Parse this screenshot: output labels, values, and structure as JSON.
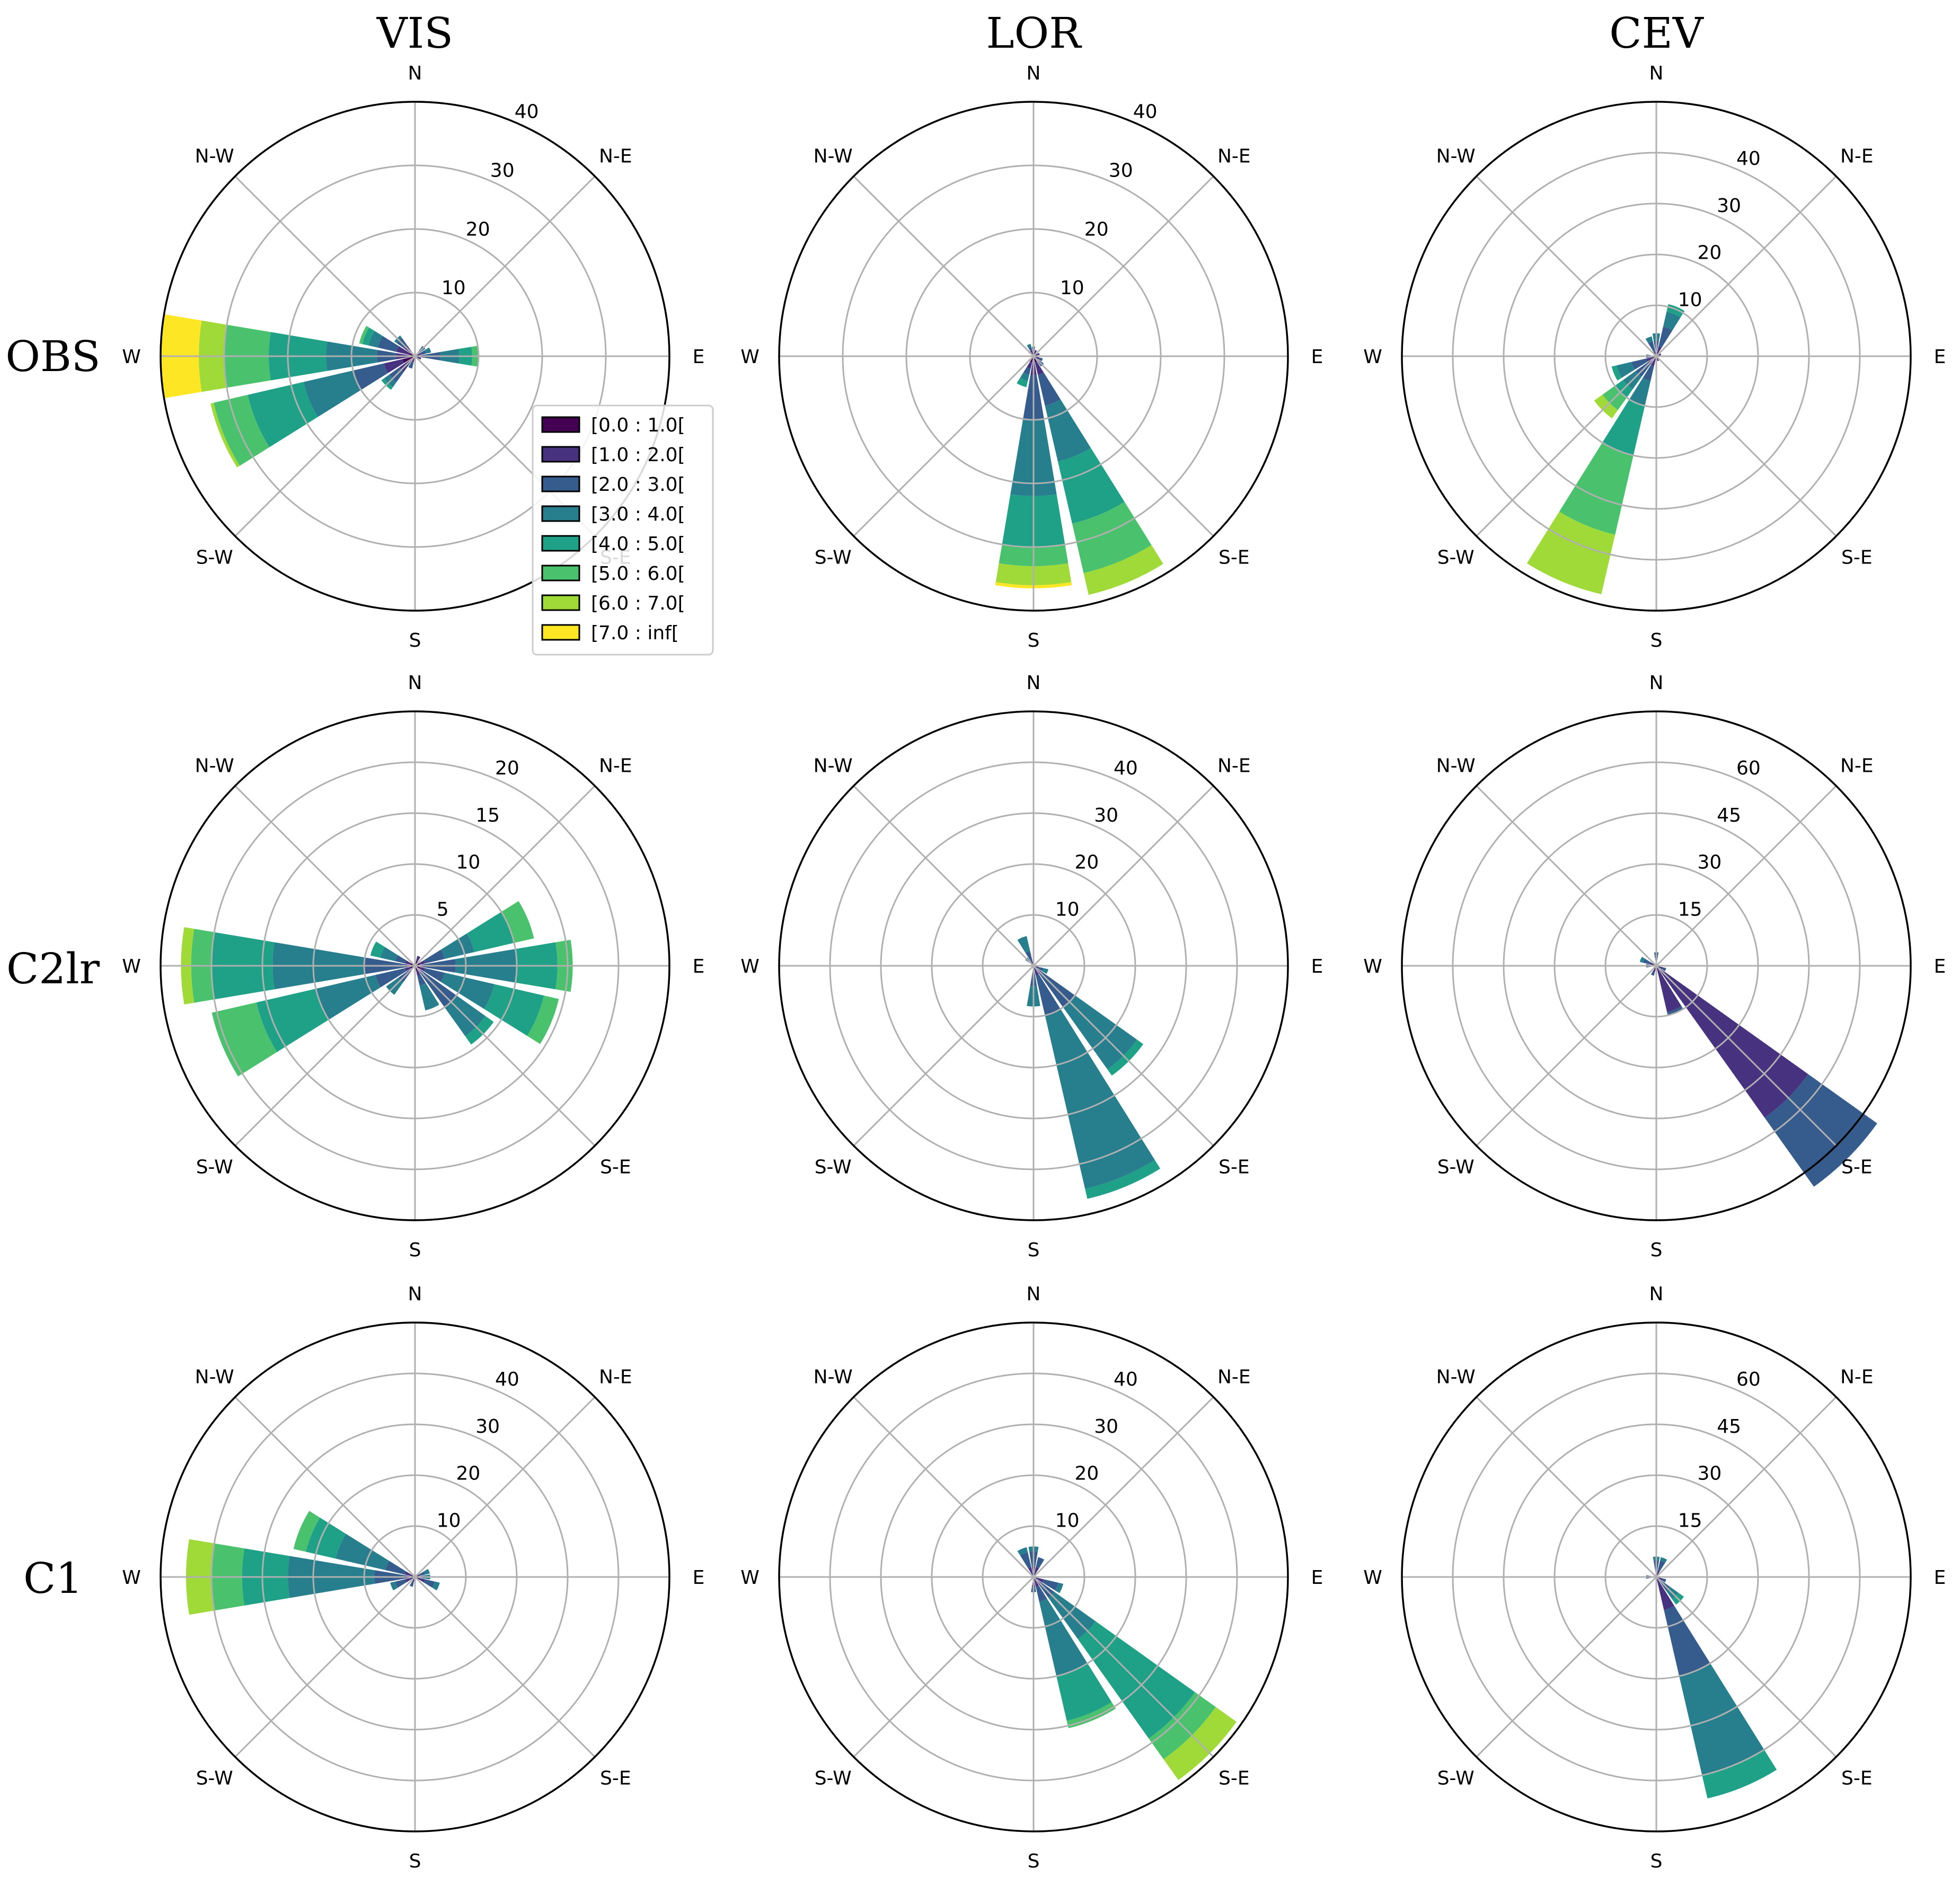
{
  "figure": {
    "columns": [
      "VIS",
      "LOR",
      "CEV"
    ],
    "rows": [
      "OBS",
      "C2lr",
      "C1"
    ],
    "directions": [
      "N",
      "N-E",
      "E",
      "S-E",
      "S",
      "S-W",
      "W",
      "N-W"
    ]
  },
  "chart_data": {
    "type": "windrose",
    "legend": {
      "placement": "between OBS-VIS and OBS-LOR",
      "entries": [
        {
          "label": "[0.0 : 1.0[",
          "color": "#440154"
        },
        {
          "label": "[1.0 : 2.0[",
          "color": "#46327e"
        },
        {
          "label": "[2.0 : 3.0[",
          "color": "#365c8d"
        },
        {
          "label": "[3.0 : 4.0[",
          "color": "#277f8e"
        },
        {
          "label": "[4.0 : 5.0[",
          "color": "#1fa187"
        },
        {
          "label": "[5.0 : 6.0[",
          "color": "#4ac16d"
        },
        {
          "label": "[6.0 : 7.0[",
          "color": "#a0da39"
        },
        {
          "label": "[7.0 : inf[",
          "color": "#fde725"
        }
      ]
    },
    "panels": [
      {
        "row": "OBS",
        "col": "VIS",
        "rmax": 40,
        "ticks": [
          "10",
          "20",
          "30",
          "40"
        ],
        "petals": [
          {
            "dir": 90,
            "stack": [
              0,
              0.5,
              1.5,
              4,
              7,
              9,
              10
            ]
          },
          {
            "dir": 67.5,
            "stack": [
              0,
              0.3,
              1,
              1.8,
              2.6
            ]
          },
          {
            "dir": 45,
            "stack": [
              0,
              0.5,
              1.2,
              2
            ]
          },
          {
            "dir": 112.5,
            "stack": [
              0,
              0.5,
              1
            ]
          },
          {
            "dir": 135,
            "stack": [
              0,
              0.3,
              0.7
            ]
          },
          {
            "dir": 202.5,
            "stack": [
              0,
              0.3,
              1,
              2
            ]
          },
          {
            "dir": 225,
            "stack": [
              0,
              1,
              3,
              5,
              6,
              6.5
            ]
          },
          {
            "dir": 247.5,
            "stack": [
              0,
              2,
              5,
              10,
              18,
              27,
              32.5,
              33
            ]
          },
          {
            "dir": 270,
            "stack": [
              0,
              1,
              3,
              6,
              14,
              23,
              30,
              34,
              40
            ]
          },
          {
            "dir": 292.5,
            "stack": [
              0,
              1,
              3,
              6,
              7.5,
              8.5,
              9
            ]
          },
          {
            "dir": 315,
            "stack": [
              0,
              1,
              2,
              3.5,
              4
            ]
          }
        ]
      },
      {
        "row": "OBS",
        "col": "LOR",
        "rmax": 40,
        "ticks": [
          "10",
          "20",
          "30",
          "40"
        ],
        "petals": [
          {
            "dir": 0,
            "stack": [
              0,
              0.5,
              1,
              1.5
            ]
          },
          {
            "dir": 22.5,
            "stack": [
              0,
              0.5,
              1
            ]
          },
          {
            "dir": 67.5,
            "stack": [
              0,
              0.5,
              1
            ]
          },
          {
            "dir": 112.5,
            "stack": [
              0,
              0.5,
              1,
              1.5
            ]
          },
          {
            "dir": 135,
            "stack": [
              0,
              0.5,
              1,
              2
            ]
          },
          {
            "dir": 157.5,
            "stack": [
              0,
              1,
              3,
              8,
              17,
              27,
              35,
              38.5
            ]
          },
          {
            "dir": 180,
            "stack": [
              0,
              1,
              3,
              10,
              22,
              30,
              33,
              36,
              36.5
            ]
          },
          {
            "dir": 202.5,
            "stack": [
              0,
              1,
              2,
              3,
              4,
              5
            ]
          },
          {
            "dir": 225,
            "stack": [
              0,
              0.5,
              1
            ]
          },
          {
            "dir": 337.5,
            "stack": [
              0,
              0.5,
              1,
              1.5,
              2
            ]
          },
          {
            "dir": 315,
            "stack": [
              0,
              0.5,
              1
            ]
          }
        ]
      },
      {
        "row": "OBS",
        "col": "CEV",
        "rmax": 50,
        "ticks": [
          "10",
          "20",
          "30",
          "40"
        ],
        "petals": [
          {
            "dir": 22.5,
            "stack": [
              0,
              0.5,
              2,
              6,
              9,
              10.5
            ]
          },
          {
            "dir": 0,
            "stack": [
              0,
              0.5,
              1,
              3,
              4.5
            ]
          },
          {
            "dir": 337.5,
            "stack": [
              0,
              0.5,
              1,
              3,
              4
            ]
          },
          {
            "dir": 202.5,
            "stack": [
              0,
              0.5,
              2,
              5,
              10,
              20,
              36,
              48
            ]
          },
          {
            "dir": 225,
            "stack": [
              0,
              0.5,
              2,
              5,
              8,
              10,
              13,
              15
            ]
          },
          {
            "dir": 247.5,
            "stack": [
              0,
              0.5,
              2,
              5,
              8,
              9
            ]
          },
          {
            "dir": 270,
            "stack": [
              0,
              0.5,
              1,
              2
            ]
          },
          {
            "dir": 157.5,
            "stack": [
              0,
              0.5,
              1
            ]
          },
          {
            "dir": 67.5,
            "stack": [
              0,
              0.5,
              1
            ]
          }
        ]
      },
      {
        "row": "C2lr",
        "col": "VIS",
        "rmax": 25,
        "ticks": [
          "5",
          "10",
          "15",
          "20"
        ],
        "petals": [
          {
            "dir": 270,
            "stack": [
              0,
              0.5,
              1,
              5,
              14,
              20,
              22,
              23
            ]
          },
          {
            "dir": 247.5,
            "stack": [
              0,
              0.5,
              1,
              4,
              10,
              16,
              20.5
            ]
          },
          {
            "dir": 225,
            "stack": [
              0,
              0.5,
              1,
              2,
              3.5
            ]
          },
          {
            "dir": 292.5,
            "stack": [
              0,
              0.5,
              1,
              2,
              3.5,
              4.5
            ]
          },
          {
            "dir": 90,
            "stack": [
              0,
              0.5,
              1,
              4,
              10,
              14,
              15.5
            ]
          },
          {
            "dir": 67.5,
            "stack": [
              0,
              0.5,
              1,
              3,
              6,
              10,
              12
            ]
          },
          {
            "dir": 112.5,
            "stack": [
              0,
              0.5,
              1,
              3,
              8,
              13,
              14.5
            ]
          },
          {
            "dir": 135,
            "stack": [
              0,
              0.5,
              1,
              5,
              8.5,
              9.5
            ]
          },
          {
            "dir": 157.5,
            "stack": [
              0,
              0.5,
              1,
              2,
              4.5
            ]
          },
          {
            "dir": 22.5,
            "stack": [
              0,
              0.5,
              1
            ]
          }
        ]
      },
      {
        "row": "C2lr",
        "col": "LOR",
        "rmax": 50,
        "ticks": [
          "10",
          "20",
          "30",
          "40"
        ],
        "petals": [
          {
            "dir": 157.5,
            "stack": [
              0,
              0.5,
              2,
              10,
              45,
              47
            ]
          },
          {
            "dir": 135,
            "stack": [
              0,
              0.5,
              2,
              10,
              25,
              26.5
            ]
          },
          {
            "dir": 180,
            "stack": [
              0,
              0.5,
              1,
              4,
              8
            ]
          },
          {
            "dir": 112.5,
            "stack": [
              0,
              0.5,
              1,
              2,
              3
            ]
          },
          {
            "dir": 337.5,
            "stack": [
              0,
              0.5,
              1,
              3,
              6
            ]
          },
          {
            "dir": 315,
            "stack": [
              0,
              0.5,
              1,
              2
            ]
          },
          {
            "dir": 225,
            "stack": [
              0,
              0.5,
              1
            ]
          }
        ]
      },
      {
        "row": "C2lr",
        "col": "CEV",
        "rmax": 75,
        "ticks": [
          "15",
          "30",
          "45",
          "60"
        ],
        "petals": [
          {
            "dir": 135,
            "stack": [
              0,
              1,
              55,
              80
            ]
          },
          {
            "dir": 157.5,
            "stack": [
              0,
              1,
              14,
              15
            ]
          },
          {
            "dir": 0,
            "stack": [
              0,
              0.5,
              2,
              4
            ]
          },
          {
            "dir": 292.5,
            "stack": [
              0,
              0.5,
              2,
              4,
              5
            ]
          },
          {
            "dir": 270,
            "stack": [
              0,
              0.5,
              2,
              3
            ]
          },
          {
            "dir": 202.5,
            "stack": [
              0,
              0.5,
              2,
              3
            ]
          },
          {
            "dir": 112.5,
            "stack": [
              0,
              0.5,
              2,
              3
            ]
          }
        ]
      },
      {
        "row": "C1",
        "col": "VIS",
        "rmax": 50,
        "ticks": [
          "10",
          "20",
          "30",
          "40"
        ],
        "petals": [
          {
            "dir": 270,
            "stack": [
              0,
              0.5,
              2,
              8,
              25,
              34,
              40,
              45
            ]
          },
          {
            "dir": 292.5,
            "stack": [
              0,
              0.5,
              2,
              6,
              16,
              22,
              24.5
            ]
          },
          {
            "dir": 247.5,
            "stack": [
              0,
              0.5,
              2,
              4,
              5
            ]
          },
          {
            "dir": 112.5,
            "stack": [
              0,
              0.5,
              2,
              4,
              5
            ]
          },
          {
            "dir": 90,
            "stack": [
              0,
              0.5,
              1,
              2,
              3
            ]
          },
          {
            "dir": 67.5,
            "stack": [
              0,
              0.5,
              1,
              2,
              3
            ]
          },
          {
            "dir": 202.5,
            "stack": [
              0,
              0.5,
              1,
              2
            ]
          }
        ]
      },
      {
        "row": "C1",
        "col": "LOR",
        "rmax": 50,
        "ticks": [
          "10",
          "20",
          "30",
          "40"
        ],
        "petals": [
          {
            "dir": 135,
            "stack": [
              0,
              0.5,
              2,
              5,
              15,
              39,
              44,
              49
            ]
          },
          {
            "dir": 157.5,
            "stack": [
              0,
              0.5,
              2,
              5,
              20,
              29,
              30.5
            ]
          },
          {
            "dir": 112.5,
            "stack": [
              0,
              0.5,
              2,
              5,
              6
            ]
          },
          {
            "dir": 0,
            "stack": [
              0,
              0.5,
              2,
              5,
              6
            ]
          },
          {
            "dir": 337.5,
            "stack": [
              0,
              0.5,
              2,
              5,
              6
            ]
          },
          {
            "dir": 22.5,
            "stack": [
              0,
              0.5,
              2,
              4
            ]
          },
          {
            "dir": 180,
            "stack": [
              0,
              0.5,
              2,
              3
            ]
          }
        ]
      },
      {
        "row": "C1",
        "col": "CEV",
        "rmax": 75,
        "ticks": [
          "15",
          "30",
          "45",
          "60"
        ],
        "petals": [
          {
            "dir": 157.5,
            "stack": [
              0,
              1,
              10,
              30,
              60,
              67
            ]
          },
          {
            "dir": 135,
            "stack": [
              0,
              0.5,
              2,
              5,
              8,
              10
            ]
          },
          {
            "dir": 22.5,
            "stack": [
              0,
              0.5,
              2,
              5,
              6
            ]
          },
          {
            "dir": 0,
            "stack": [
              0,
              0.5,
              2,
              5,
              6
            ]
          },
          {
            "dir": 270,
            "stack": [
              0,
              0.5,
              2,
              3
            ]
          },
          {
            "dir": 112.5,
            "stack": [
              0,
              0.5,
              2,
              3
            ]
          }
        ]
      }
    ]
  }
}
